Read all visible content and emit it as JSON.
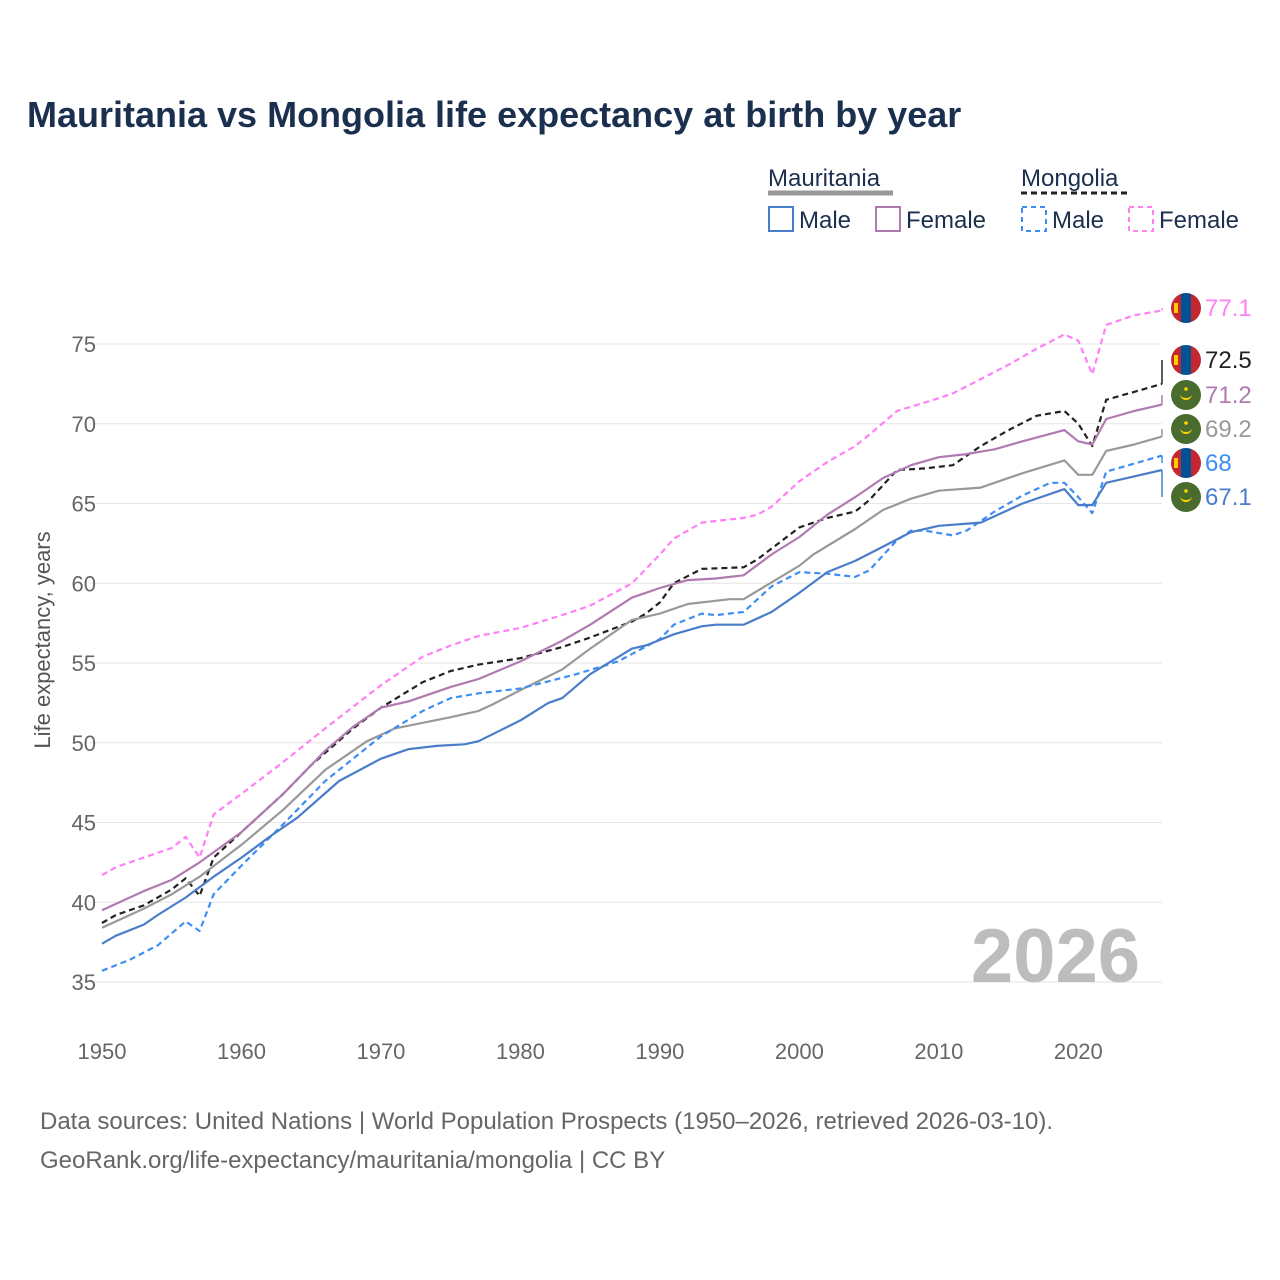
{
  "title": "Mauritania vs Mongolia life expectancy at birth by year",
  "legend": {
    "groups": [
      {
        "name": "Mauritania",
        "color": "#999999",
        "dash": false,
        "items": [
          "Male",
          "Female"
        ]
      },
      {
        "name": "Mongolia",
        "color": "#222222",
        "dash": true,
        "items": [
          "Male",
          "Female"
        ]
      }
    ]
  },
  "year_watermark": "2026",
  "sources": [
    "Data sources: United Nations | World Population Prospects (1950–2026, retrieved 2026-03-10).",
    "GeoRank.org/life-expectancy/mauritania/mongolia | CC BY"
  ],
  "chart_data": {
    "type": "line",
    "title": "Mauritania vs Mongolia life expectancy at birth by year",
    "xlabel": "",
    "ylabel": "Life expectancy, years",
    "xlim": [
      1950,
      2026
    ],
    "ylim": [
      33,
      78
    ],
    "xticks": [
      1950,
      1960,
      1970,
      1980,
      1990,
      2000,
      2010,
      2020
    ],
    "yticks": [
      35,
      40,
      45,
      50,
      55,
      60,
      65,
      70,
      75
    ],
    "grid": true,
    "legend_position": "top-right",
    "series": [
      {
        "name": "Mongolia Female",
        "country": "Mongolia",
        "color": "#ff80f5",
        "dash": true,
        "end_label": "77.1",
        "x": [
          1950,
          1951,
          1953,
          1955,
          1956,
          1957,
          1958,
          1960,
          1963,
          1966,
          1970,
          1973,
          1975,
          1977,
          1980,
          1983,
          1985,
          1988,
          1990,
          1991,
          1993,
          1996,
          1997,
          1998,
          2000,
          2002,
          2004,
          2005,
          2007,
          2010,
          2011,
          2013,
          2015,
          2017,
          2019,
          2020,
          2021,
          2022,
          2024,
          2026
        ],
        "y": [
          41.7,
          42.2,
          42.8,
          43.4,
          44.1,
          42.8,
          45.5,
          46.8,
          48.8,
          50.9,
          53.6,
          55.4,
          56.1,
          56.7,
          57.2,
          58.0,
          58.6,
          60.0,
          61.8,
          62.8,
          63.8,
          64.1,
          64.3,
          64.8,
          66.4,
          67.6,
          68.6,
          69.3,
          70.8,
          71.6,
          71.9,
          72.8,
          73.7,
          74.7,
          75.6,
          75.2,
          73.1,
          76.2,
          76.8,
          77.1
        ]
      },
      {
        "name": "Mongolia",
        "country": "Mongolia",
        "color": "#222222",
        "dash": true,
        "end_label": "72.5",
        "x": [
          1950,
          1951,
          1953,
          1955,
          1956,
          1957,
          1958,
          1960,
          1963,
          1965,
          1968,
          1970,
          1973,
          1975,
          1977,
          1980,
          1983,
          1985,
          1988,
          1989,
          1990,
          1991,
          1993,
          1996,
          1997,
          2000,
          2002,
          2004,
          2005,
          2007,
          2009,
          2011,
          2013,
          2015,
          2017,
          2019,
          2020,
          2021,
          2022,
          2024,
          2026
        ],
        "y": [
          38.7,
          39.2,
          39.8,
          40.8,
          41.5,
          40.4,
          42.8,
          44.4,
          46.8,
          48.6,
          50.9,
          52.2,
          53.8,
          54.5,
          54.9,
          55.3,
          56.0,
          56.6,
          57.6,
          58.1,
          58.8,
          60.0,
          60.9,
          61.0,
          61.5,
          63.5,
          64.1,
          64.5,
          65.2,
          67.1,
          67.2,
          67.4,
          68.6,
          69.6,
          70.5,
          70.8,
          70.0,
          68.6,
          71.5,
          72.0,
          72.5
        ]
      },
      {
        "name": "Mauritania Female",
        "country": "Mauritania",
        "color": "#b07ab0",
        "dash": false,
        "end_label": "71.2",
        "x": [
          1950,
          1953,
          1955,
          1957,
          1960,
          1963,
          1966,
          1968,
          1970,
          1972,
          1975,
          1977,
          1980,
          1983,
          1985,
          1988,
          1990,
          1992,
          1994,
          1996,
          1998,
          2000,
          2002,
          2004,
          2006,
          2008,
          2010,
          2012,
          2014,
          2016,
          2019,
          2020,
          2021,
          2022,
          2024,
          2026
        ],
        "y": [
          39.5,
          40.7,
          41.4,
          42.5,
          44.4,
          46.8,
          49.5,
          51.0,
          52.2,
          52.6,
          53.5,
          54.0,
          55.1,
          56.4,
          57.4,
          59.1,
          59.7,
          60.2,
          60.3,
          60.5,
          61.8,
          62.9,
          64.3,
          65.4,
          66.6,
          67.4,
          67.9,
          68.1,
          68.4,
          68.9,
          69.6,
          68.9,
          68.7,
          70.3,
          70.8,
          71.2
        ]
      },
      {
        "name": "Mauritania",
        "country": "Mauritania",
        "color": "#999999",
        "dash": false,
        "end_label": "69.2",
        "x": [
          1950,
          1953,
          1955,
          1957,
          1960,
          1963,
          1966,
          1969,
          1971,
          1975,
          1977,
          1978,
          1980,
          1983,
          1985,
          1988,
          1990,
          1992,
          1995,
          1996,
          2000,
          2001,
          2004,
          2006,
          2008,
          2010,
          2013,
          2016,
          2019,
          2020,
          2021,
          2022,
          2024,
          2026
        ],
        "y": [
          38.4,
          39.6,
          40.5,
          41.6,
          43.6,
          45.8,
          48.3,
          50.1,
          50.9,
          51.6,
          52.0,
          52.4,
          53.3,
          54.6,
          55.9,
          57.7,
          58.1,
          58.7,
          59.0,
          59.0,
          61.1,
          61.8,
          63.4,
          64.6,
          65.3,
          65.8,
          66.0,
          66.9,
          67.7,
          66.8,
          66.8,
          68.3,
          68.7,
          69.2
        ]
      },
      {
        "name": "Mongolia Male",
        "country": "Mongolia",
        "color": "#3d8ef5",
        "dash": true,
        "end_label": "68",
        "x": [
          1950,
          1952,
          1954,
          1956,
          1957,
          1958,
          1960,
          1963,
          1966,
          1970,
          1973,
          1975,
          1977,
          1980,
          1984,
          1987,
          1990,
          1991,
          1993,
          1994,
          1996,
          1998,
          2000,
          2002,
          2004,
          2005,
          2007,
          2008,
          2009,
          2011,
          2012,
          2014,
          2016,
          2018,
          2019,
          2020,
          2021,
          2022,
          2024,
          2026
        ],
        "y": [
          35.7,
          36.4,
          37.3,
          38.8,
          38.2,
          40.5,
          42.3,
          44.9,
          47.6,
          50.4,
          52.0,
          52.8,
          53.1,
          53.4,
          54.3,
          55.1,
          56.5,
          57.4,
          58.1,
          58.0,
          58.2,
          59.8,
          60.7,
          60.6,
          60.4,
          60.8,
          62.7,
          63.3,
          63.3,
          63.0,
          63.3,
          64.5,
          65.5,
          66.3,
          66.3,
          65.4,
          64.4,
          67.0,
          67.5,
          68.0
        ]
      },
      {
        "name": "Mauritania Male",
        "country": "Mauritania",
        "color": "#4a7dc9",
        "dash": false,
        "end_label": "67.1",
        "x": [
          1950,
          1951,
          1953,
          1954,
          1956,
          1958,
          1960,
          1962,
          1964,
          1967,
          1970,
          1972,
          1974,
          1976,
          1977,
          1980,
          1982,
          1983,
          1985,
          1988,
          1989,
          1991,
          1993,
          1994,
          1996,
          1998,
          2000,
          2002,
          2004,
          2006,
          2008,
          2010,
          2013,
          2016,
          2019,
          2020,
          2021,
          2022,
          2024,
          2026
        ],
        "y": [
          37.4,
          37.9,
          38.6,
          39.2,
          40.3,
          41.6,
          42.8,
          44.1,
          45.3,
          47.6,
          49.0,
          49.6,
          49.8,
          49.9,
          50.1,
          51.4,
          52.5,
          52.8,
          54.3,
          55.9,
          56.1,
          56.8,
          57.3,
          57.4,
          57.4,
          58.2,
          59.4,
          60.7,
          61.4,
          62.3,
          63.2,
          63.6,
          63.8,
          65.0,
          65.9,
          64.9,
          64.9,
          66.3,
          66.7,
          67.1
        ]
      }
    ]
  }
}
